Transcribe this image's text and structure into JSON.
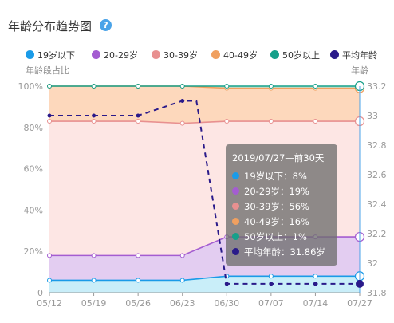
{
  "header": {
    "title": "年龄分布趋势图",
    "help_icon": "?"
  },
  "axis_titles": {
    "left": "年龄段占比",
    "right": "年龄"
  },
  "chart_data": {
    "type": "area",
    "stacked": true,
    "categories": [
      "05/12",
      "05/19",
      "05/26",
      "06/23",
      "06/30",
      "07/07",
      "07/14",
      "07/27"
    ],
    "y_ticks": [
      "0",
      "20%",
      "40%",
      "60%",
      "80%",
      "100%"
    ],
    "y2_ticks": [
      "31.8",
      "32",
      "32.2",
      "32.4",
      "32.6",
      "32.8",
      "33",
      "33.2"
    ],
    "ylim": [
      0,
      100
    ],
    "y2lim": [
      31.8,
      33.2
    ],
    "grid": true,
    "legend_position": "top",
    "series": [
      {
        "name": "19岁以下",
        "color": "#1a9be8",
        "fill": "#c9eef9",
        "values": [
          6,
          6,
          6,
          6,
          8,
          8,
          8,
          8
        ]
      },
      {
        "name": "20-29岁",
        "color": "#a45dd1",
        "fill": "#e3cdf1",
        "values": [
          12,
          12,
          12,
          12,
          19,
          19,
          19,
          19
        ]
      },
      {
        "name": "30-39岁",
        "color": "#e89090",
        "fill": "#fde6e4",
        "values": [
          65,
          65,
          65,
          64,
          56,
          56,
          56,
          56
        ]
      },
      {
        "name": "40-49岁",
        "color": "#f0a060",
        "fill": "#fdd8bc",
        "values": [
          17,
          17,
          17,
          18,
          16,
          16,
          16,
          16
        ]
      },
      {
        "name": "50岁以上",
        "color": "#16a08a",
        "fill": "#b8e8dc",
        "values": [
          0,
          0,
          0,
          0,
          1,
          1,
          1,
          1
        ]
      }
    ],
    "line_series": {
      "name": "平均年龄",
      "color": "#2a1a8a",
      "axis": "right",
      "values": [
        33.0,
        33.0,
        33.0,
        33.1,
        31.86,
        31.86,
        31.86,
        31.86
      ]
    }
  },
  "tooltip": {
    "title": "2019/07/27—前30天",
    "rows": [
      {
        "text": "19岁以下：8%",
        "color": "#1a9be8"
      },
      {
        "text": "20-29岁：19%",
        "color": "#a45dd1"
      },
      {
        "text": "30-39岁：56%",
        "color": "#e89090"
      },
      {
        "text": "40-49岁：16%",
        "color": "#f0a060"
      },
      {
        "text": "50岁以上：1%",
        "color": "#16a08a"
      },
      {
        "text": "平均年龄：31.86岁",
        "color": "#2a1a8a"
      }
    ]
  }
}
